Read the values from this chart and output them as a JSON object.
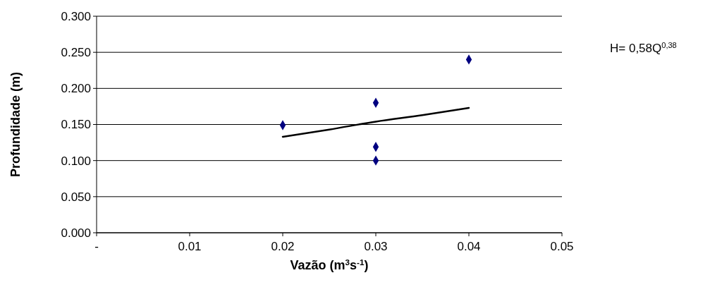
{
  "chart_data": {
    "type": "scatter",
    "xlabel": "Vazão (m$^{3}$s$^{-1}$)",
    "ylabel": "Profundidade (m)",
    "xlim": [
      0,
      0.05
    ],
    "xticks": [
      {
        "value": 0,
        "label": "-"
      },
      0.01,
      0.02,
      0.03,
      0.04,
      0.05
    ],
    "ylim": [
      0,
      0.3
    ],
    "yticks": [
      {
        "value": 0,
        "label": "0.000"
      },
      {
        "value": 0.05,
        "label": "0.050"
      },
      {
        "value": 0.1,
        "label": "0.100"
      },
      {
        "value": 0.15,
        "label": "0.150"
      },
      {
        "value": 0.2,
        "label": "0.200"
      },
      {
        "value": 0.25,
        "label": "0.250"
      },
      {
        "value": 0.3,
        "label": "0.300"
      }
    ],
    "grid": "y",
    "marker": "diamond",
    "series": [
      {
        "color": "#000080",
        "x": [
          0.02,
          0.03,
          0.03,
          0.03,
          0.04
        ],
        "values": [
          0.149,
          0.18,
          0.119,
          0.1,
          0.24
        ]
      },
      {
        "type": "line",
        "color": "#000000",
        "marker": "none",
        "x": [
          0.02,
          0.025,
          0.03,
          0.035,
          0.04
        ],
        "values": [
          0.133,
          0.143,
          0.154,
          0.163,
          0.173
        ]
      }
    ],
    "annotations": [
      "H= 0,58Q$^{0,38}$"
    ]
  }
}
